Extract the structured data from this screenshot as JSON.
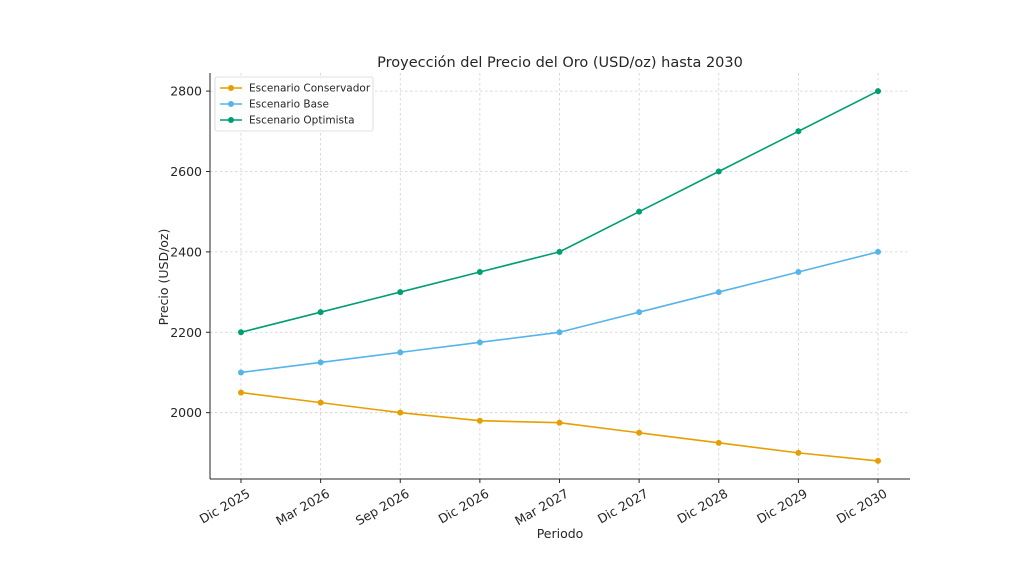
{
  "chart_data": {
    "type": "line",
    "title": "Proyección del Precio del Oro (USD/oz) hasta 2030",
    "xlabel": "Periodo",
    "ylabel": "Precio (USD/oz)",
    "categories": [
      "Dic 2025",
      "Mar 2026",
      "Sep 2026",
      "Dic 2026",
      "Mar 2027",
      "Dic 2027",
      "Dic 2028",
      "Dic 2029",
      "Dic 2030"
    ],
    "ylim": [
      1835,
      2845
    ],
    "yticks": [
      2000,
      2200,
      2400,
      2600,
      2800
    ],
    "grid": true,
    "legend_position": "top-left",
    "series": [
      {
        "name": "Escenario Conservador",
        "color": "#E69F00",
        "values": [
          2050,
          2025,
          2000,
          1980,
          1975,
          1950,
          1925,
          1900,
          1880
        ]
      },
      {
        "name": "Escenario Base",
        "color": "#56B4E9",
        "values": [
          2100,
          2125,
          2150,
          2175,
          2200,
          2250,
          2300,
          2350,
          2400
        ]
      },
      {
        "name": "Escenario Optimista",
        "color": "#009E73",
        "values": [
          2200,
          2250,
          2300,
          2350,
          2400,
          2500,
          2600,
          2700,
          2800
        ]
      }
    ]
  }
}
